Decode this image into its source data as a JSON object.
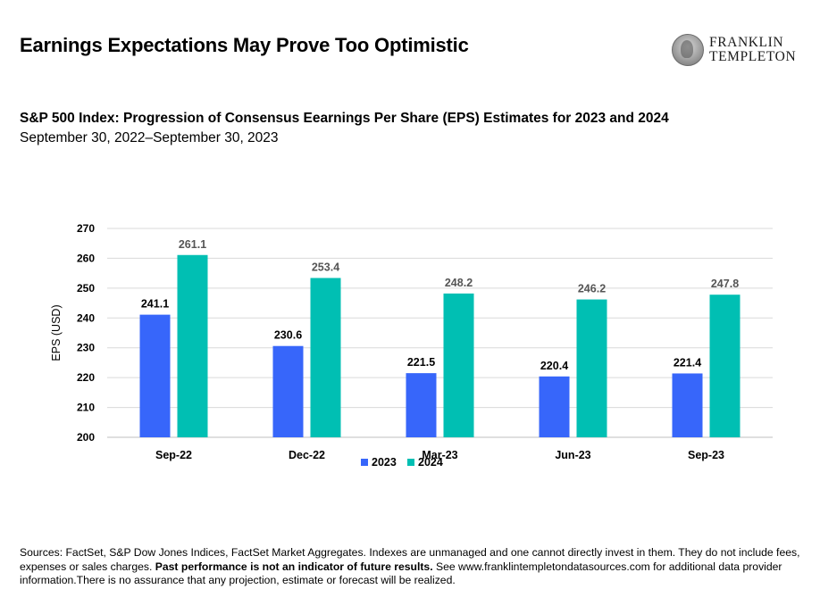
{
  "page": {
    "title": "Earnings Expectations May Prove Too Optimistic",
    "logo": {
      "line1": "FRANKLIN",
      "line2": "TEMPLETON"
    }
  },
  "chart_data": {
    "type": "bar",
    "title": "S&P 500 Index: Progression of Consensus Eearnings Per Share (EPS) Estimates for 2023 and 2024",
    "subtitle": "September 30, 2022–September 30, 2023",
    "categories": [
      "Sep-22",
      "Dec-22",
      "Mar-23",
      "Jun-23",
      "Sep-23"
    ],
    "series": [
      {
        "name": "2023",
        "values": [
          241.1,
          230.6,
          221.5,
          220.4,
          221.4
        ],
        "color": "#3766fa"
      },
      {
        "name": "2024",
        "values": [
          261.1,
          253.4,
          248.2,
          246.2,
          247.8
        ],
        "color": "#00bfb3"
      }
    ],
    "xlabel": "",
    "ylabel": "EPS (USD)",
    "ylim": [
      200,
      270
    ],
    "yticks": [
      200,
      210,
      220,
      230,
      240,
      250,
      260,
      270
    ],
    "grid": true,
    "legend": "bottom-center",
    "data_labels": true
  },
  "footnote": {
    "part1": "Sources: FactSet, S&P Dow Jones Indices, FactSet Market Aggregates. Indexes are unmanaged and one cannot directly invest in them. They do not include fees, expenses or sales charges. ",
    "bold": "Past performance is not an indicator of future results.",
    "part2": " See www.franklintempletondatasources.com for additional data provider information.There is no assurance that any projection, estimate or forecast will be realized."
  }
}
